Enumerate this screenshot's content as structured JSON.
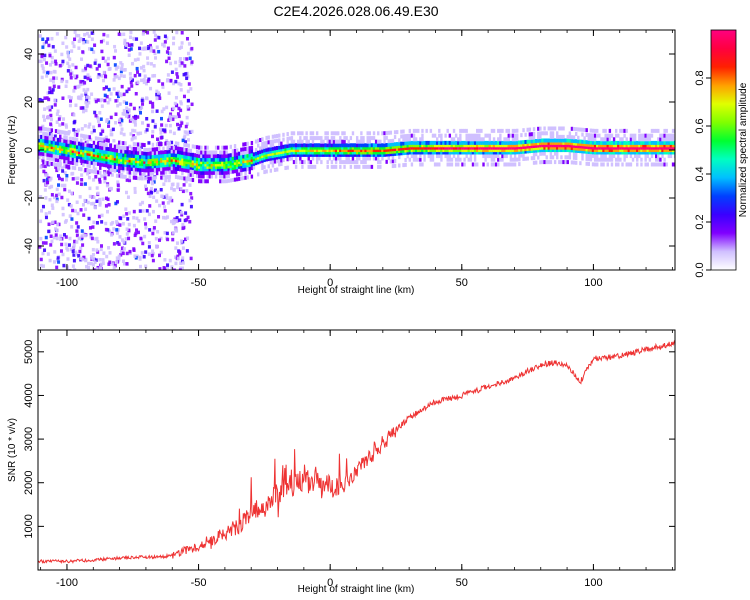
{
  "chart_data": [
    {
      "type": "heatmap",
      "title": "C2E4.2026.028.06.49.E30",
      "xlabel": "Height of straight line (km)",
      "ylabel": "Frequency (Hz)",
      "xlim": [
        -111,
        131
      ],
      "ylim": [
        -50,
        50
      ],
      "xticks": [
        -100,
        -50,
        0,
        50,
        100
      ],
      "yticks": [
        -40,
        -20,
        0,
        20,
        40
      ],
      "xtick_labels": [
        "-100",
        "-50",
        "0",
        "50",
        "100"
      ],
      "ytick_labels": [
        "-40",
        "-20",
        "0",
        "20",
        "40"
      ],
      "ridge": {
        "x": [
          -110,
          -100,
          -90,
          -80,
          -70,
          -60,
          -50,
          -40,
          -30,
          -25,
          -20,
          -15,
          -10,
          -5,
          0,
          10,
          20,
          30,
          50,
          70,
          80,
          90,
          100,
          110,
          131
        ],
        "y": [
          2,
          0,
          -2,
          -4,
          -5,
          -4,
          -6,
          -6,
          -4,
          -2,
          -1,
          0,
          0,
          0,
          0,
          0,
          0,
          1,
          1,
          1,
          2,
          2,
          1,
          1,
          1
        ]
      },
      "colorbar": {
        "label": "Normalized spectral amplitude",
        "range": [
          0,
          1
        ],
        "ticks": [
          0.0,
          0.2,
          0.4,
          0.6,
          0.8
        ],
        "tick_labels": [
          "0.0",
          "0.2",
          "0.4",
          "0.6",
          "0.8"
        ],
        "colors": [
          "#ffffff",
          "#d0c0ff",
          "#8000ff",
          "#3a00ff",
          "#0040ff",
          "#00c0ff",
          "#00ffc0",
          "#00ff30",
          "#80ff00",
          "#e0ff00",
          "#ffa000",
          "#ff2000",
          "#ff0040",
          "#ff0080"
        ]
      }
    },
    {
      "type": "line",
      "xlabel": "Height of straight line (km)",
      "ylabel": "SNR (10 * v/v)",
      "xlim": [
        -111,
        131
      ],
      "ylim": [
        0,
        5500
      ],
      "xticks": [
        -100,
        -50,
        0,
        50,
        100
      ],
      "yticks": [
        1000,
        2000,
        3000,
        4000,
        5000
      ],
      "xtick_labels": [
        "-100",
        "-50",
        "0",
        "50",
        "100"
      ],
      "ytick_labels": [
        "1000",
        "2000",
        "3000",
        "4000",
        "5000"
      ],
      "color": "#ee3333",
      "series": [
        {
          "name": "SNR",
          "x": [
            -111,
            -100,
            -90,
            -80,
            -70,
            -65,
            -60,
            -55,
            -50,
            -45,
            -40,
            -35,
            -30,
            -25,
            -20,
            -15,
            -10,
            -5,
            0,
            5,
            10,
            15,
            20,
            25,
            30,
            40,
            50,
            60,
            70,
            80,
            85,
            90,
            95,
            100,
            110,
            120,
            131
          ],
          "values": [
            200,
            200,
            230,
            270,
            300,
            300,
            330,
            450,
            550,
            700,
            850,
            1000,
            1300,
            1500,
            1750,
            1950,
            2000,
            2000,
            1900,
            2000,
            2300,
            2600,
            2900,
            3200,
            3500,
            3850,
            4000,
            4200,
            4400,
            4700,
            4750,
            4700,
            4300,
            4850,
            4900,
            5050,
            5200
          ]
        }
      ]
    }
  ]
}
